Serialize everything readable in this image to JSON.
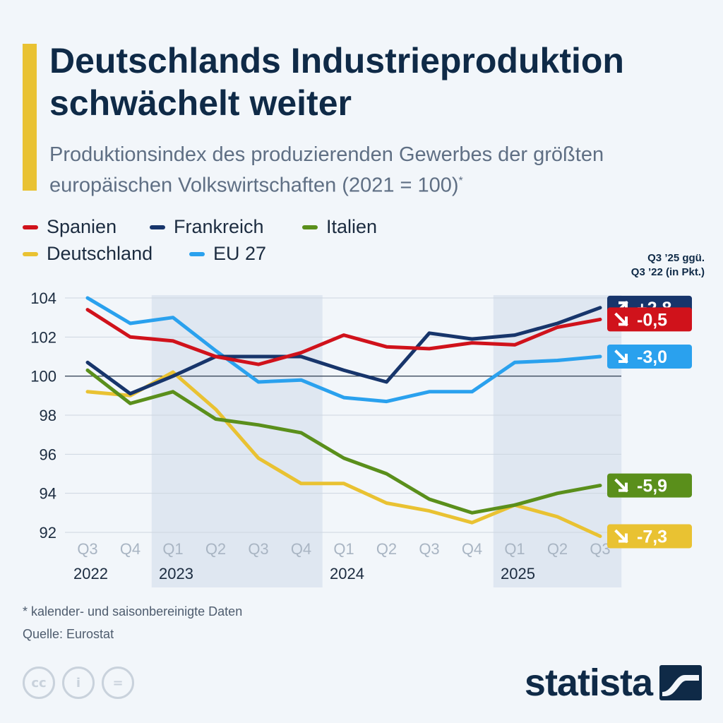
{
  "header": {
    "title": "Deutschlands Industrie­produktion schwächelt weiter",
    "subtitle": "Produktionsindex des produzierenden Gewerbes der größten europäischen Volkswirtschaften (2021 = 100)",
    "subtitle_mark": "*"
  },
  "legend": [
    {
      "name": "Spanien",
      "color": "#d0121b"
    },
    {
      "name": "Frankreich",
      "color": "#17356b"
    },
    {
      "name": "Italien",
      "color": "#5a8f1b"
    },
    {
      "name": "Deutschland",
      "color": "#e9c232"
    },
    {
      "name": "EU 27",
      "color": "#2aa1ee"
    }
  ],
  "delta_header": {
    "line1": "Q3 ’25 ggü.",
    "line2": "Q3 ’22 (in Pkt.)"
  },
  "chart_data": {
    "type": "line",
    "categories": [
      "Q3",
      "Q4",
      "Q1",
      "Q2",
      "Q3",
      "Q4",
      "Q1",
      "Q2",
      "Q3",
      "Q4",
      "Q1",
      "Q2",
      "Q3"
    ],
    "year_labels": [
      {
        "label": "2022",
        "index": 0
      },
      {
        "label": "2023",
        "index": 2
      },
      {
        "label": "2024",
        "index": 6
      },
      {
        "label": "2025",
        "index": 10
      }
    ],
    "shaded_ranges": [
      [
        2,
        5
      ],
      [
        10,
        12
      ]
    ],
    "ylim": [
      92,
      104
    ],
    "yticks": [
      92,
      94,
      96,
      98,
      100,
      102,
      104
    ],
    "reference_line": 100,
    "series": [
      {
        "name": "Deutschland",
        "color": "#e9c232",
        "delta": "-7,3",
        "direction": "down",
        "values": [
          99.2,
          99.0,
          100.2,
          98.3,
          95.8,
          94.5,
          94.5,
          93.5,
          93.1,
          92.5,
          93.4,
          92.8,
          91.8
        ]
      },
      {
        "name": "Italien",
        "color": "#5a8f1b",
        "delta": "-5,9",
        "direction": "down",
        "values": [
          100.3,
          98.6,
          99.2,
          97.8,
          97.5,
          97.1,
          95.8,
          95.0,
          93.7,
          93.0,
          93.4,
          94.0,
          94.4
        ]
      },
      {
        "name": "EU 27",
        "color": "#2aa1ee",
        "delta": "-3,0",
        "direction": "down",
        "values": [
          104.0,
          102.7,
          103.0,
          101.3,
          99.7,
          99.8,
          98.9,
          98.7,
          99.2,
          99.2,
          100.7,
          100.8,
          101.0
        ]
      },
      {
        "name": "Frankreich",
        "color": "#17356b",
        "delta": "+2,8",
        "direction": "up",
        "values": [
          100.7,
          99.1,
          100.0,
          101.0,
          101.0,
          101.0,
          100.3,
          99.7,
          102.2,
          101.9,
          102.1,
          102.7,
          103.5
        ]
      },
      {
        "name": "Spanien",
        "color": "#d0121b",
        "delta": "-0,5",
        "direction": "down",
        "values": [
          103.4,
          102.0,
          101.8,
          101.0,
          100.6,
          101.2,
          102.1,
          101.5,
          101.4,
          101.7,
          101.6,
          102.5,
          102.9
        ]
      }
    ]
  },
  "footer": {
    "footnote": "* kalender- und saisonbereinigte Daten",
    "source": "Quelle: Eurostat",
    "brand": "statista",
    "license_icons": [
      "cc",
      "i",
      "="
    ]
  }
}
